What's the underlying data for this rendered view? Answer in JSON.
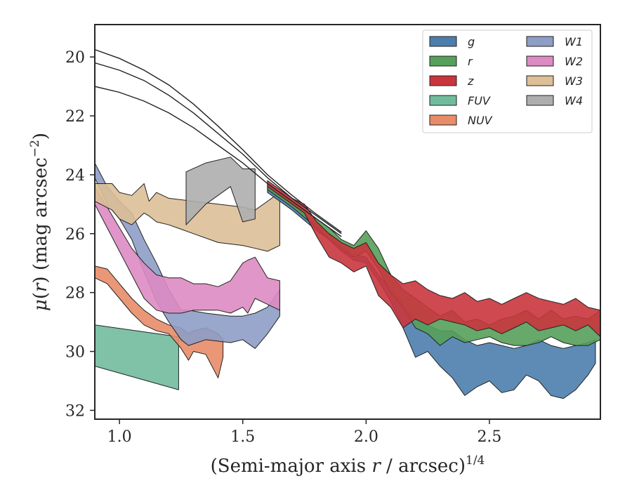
{
  "chart_data": {
    "type": "area",
    "xlabel": "(Semi-major axis r / arcsec)^1/4",
    "ylabel": "μ(r) (mag arcsec^−2)",
    "xlim": [
      0.9,
      2.95
    ],
    "ylim": [
      32.3,
      18.9
    ],
    "y_inverted": true,
    "xticks": [
      1.0,
      1.5,
      2.0,
      2.5
    ],
    "xtick_labels": [
      "1.0",
      "1.5",
      "2.0",
      "2.5"
    ],
    "yticks": [
      20,
      22,
      24,
      26,
      28,
      30,
      32
    ],
    "ytick_labels": [
      "20",
      "22",
      "24",
      "26",
      "28",
      "30",
      "32"
    ],
    "legend": {
      "position": "top-right",
      "columns": 2,
      "entries": [
        "g",
        "r",
        "z",
        "FUV",
        "NUV",
        "W1",
        "W2",
        "W3",
        "W4"
      ]
    },
    "colors": {
      "g": "#4c7ead",
      "r": "#55a05a",
      "z": "#c9353d",
      "FUV": "#71bb9d",
      "NUV": "#e88c69",
      "W1": "#8d9dc5",
      "W2": "#dd8bc2",
      "W3": "#dcbf97",
      "W4": "#aeaeae"
    },
    "model_curves": [
      {
        "x": [
          0.9,
          1.0,
          1.1,
          1.2,
          1.3,
          1.4,
          1.5,
          1.6,
          1.7,
          1.8,
          1.9
        ],
        "y": [
          21.0,
          21.2,
          21.5,
          21.9,
          22.4,
          23.0,
          23.6,
          24.3,
          24.9,
          25.5,
          26.1
        ]
      },
      {
        "x": [
          0.9,
          1.0,
          1.1,
          1.2,
          1.3,
          1.4,
          1.5,
          1.6,
          1.7,
          1.8,
          1.9
        ],
        "y": [
          20.2,
          20.45,
          20.8,
          21.3,
          21.9,
          22.6,
          23.3,
          24.1,
          24.8,
          25.4,
          26.0
        ]
      },
      {
        "x": [
          0.9,
          1.0,
          1.1,
          1.2,
          1.3,
          1.4,
          1.5,
          1.6,
          1.7,
          1.8,
          1.9
        ],
        "y": [
          19.75,
          20.05,
          20.45,
          20.95,
          21.6,
          22.35,
          23.15,
          24.0,
          24.7,
          25.35,
          25.95
        ]
      }
    ],
    "series": [
      {
        "name": "FUV",
        "x": [
          0.9,
          1.24
        ],
        "y_upper": [
          29.1,
          29.5
        ],
        "y_lower": [
          30.5,
          31.3
        ]
      },
      {
        "name": "NUV",
        "x": [
          0.9,
          0.95,
          1.0,
          1.05,
          1.1,
          1.15,
          1.2,
          1.25,
          1.28,
          1.3,
          1.35,
          1.4,
          1.42
        ],
        "y_upper": [
          27.1,
          27.2,
          27.7,
          28.2,
          28.6,
          28.9,
          29.1,
          29.2,
          29.4,
          29.3,
          29.2,
          29.4,
          29.6
        ],
        "y_lower": [
          27.5,
          27.7,
          28.2,
          28.7,
          29.1,
          29.3,
          29.4,
          29.9,
          30.3,
          30.0,
          30.1,
          30.9,
          30.2
        ]
      },
      {
        "name": "W1",
        "x": [
          0.9,
          0.95,
          1.0,
          1.05,
          1.1,
          1.15,
          1.2,
          1.25,
          1.28,
          1.35,
          1.45,
          1.5,
          1.55,
          1.6,
          1.65
        ],
        "y_upper": [
          23.6,
          24.4,
          24.9,
          25.3,
          26.2,
          27.0,
          27.9,
          28.6,
          28.6,
          28.7,
          28.8,
          28.8,
          28.7,
          28.5,
          27.9
        ],
        "y_lower": [
          24.1,
          25.0,
          25.5,
          26.2,
          27.3,
          28.3,
          29.0,
          29.6,
          29.8,
          29.6,
          29.7,
          29.6,
          29.9,
          29.4,
          28.8
        ]
      },
      {
        "name": "W2",
        "x": [
          0.9,
          0.95,
          1.0,
          1.05,
          1.1,
          1.15,
          1.2,
          1.25,
          1.3,
          1.35,
          1.4,
          1.45,
          1.5,
          1.52,
          1.55,
          1.6,
          1.65
        ],
        "y_upper": [
          24.4,
          25.1,
          25.8,
          26.5,
          27.0,
          27.4,
          27.5,
          27.5,
          27.7,
          27.7,
          27.8,
          27.6,
          27.0,
          26.9,
          26.8,
          27.5,
          27.6
        ],
        "y_lower": [
          25.0,
          25.8,
          26.6,
          27.4,
          28.2,
          28.6,
          28.7,
          28.7,
          28.6,
          28.6,
          28.6,
          28.7,
          28.5,
          28.7,
          28.2,
          28.4,
          28.6
        ]
      },
      {
        "name": "W3",
        "x": [
          0.9,
          0.97,
          1.0,
          1.05,
          1.1,
          1.12,
          1.15,
          1.2,
          1.3,
          1.4,
          1.5,
          1.55,
          1.6,
          1.65
        ],
        "y_upper": [
          24.3,
          24.3,
          24.6,
          24.7,
          24.3,
          24.9,
          24.6,
          24.8,
          24.9,
          25.0,
          25.1,
          25.2,
          24.9,
          24.6
        ],
        "y_lower": [
          24.9,
          25.2,
          25.5,
          25.7,
          25.3,
          25.4,
          25.6,
          25.7,
          26.0,
          26.3,
          26.4,
          26.5,
          26.6,
          26.4
        ]
      },
      {
        "name": "W4",
        "x": [
          1.27,
          1.35,
          1.45,
          1.5,
          1.55
        ],
        "y_upper": [
          23.9,
          23.6,
          23.4,
          23.8,
          23.8
        ],
        "y_lower": [
          25.7,
          25.0,
          24.4,
          25.6,
          25.5
        ]
      },
      {
        "name": "g",
        "x": [
          1.6,
          1.7,
          1.8,
          1.85,
          1.9,
          1.95,
          2.0,
          2.05,
          2.1,
          2.15,
          2.2,
          2.25,
          2.3,
          2.35,
          2.4,
          2.45,
          2.5,
          2.55,
          2.6,
          2.65,
          2.7,
          2.75,
          2.8,
          2.85,
          2.9,
          2.93
        ],
        "y_upper": [
          24.4,
          25.0,
          25.7,
          26.0,
          26.4,
          26.7,
          26.8,
          27.4,
          27.9,
          28.4,
          28.9,
          29.1,
          29.3,
          29.3,
          29.6,
          29.8,
          29.7,
          29.8,
          29.9,
          29.8,
          29.6,
          29.8,
          29.9,
          29.8,
          29.7,
          29.6
        ],
        "y_lower": [
          24.6,
          25.2,
          25.9,
          26.2,
          26.6,
          26.9,
          27.0,
          27.6,
          28.3,
          29.2,
          30.2,
          30.0,
          30.5,
          30.9,
          31.5,
          31.2,
          31.0,
          31.4,
          31.3,
          30.8,
          31.0,
          31.5,
          31.6,
          31.3,
          30.8,
          30.4
        ]
      },
      {
        "name": "r",
        "x": [
          1.6,
          1.7,
          1.8,
          1.85,
          1.9,
          1.95,
          2.0,
          2.05,
          2.1,
          2.15,
          2.2,
          2.25,
          2.3,
          2.35,
          2.4,
          2.45,
          2.5,
          2.55,
          2.6,
          2.65,
          2.7,
          2.75,
          2.8,
          2.85,
          2.9,
          2.95
        ],
        "y_upper": [
          24.3,
          24.9,
          25.5,
          25.8,
          26.2,
          26.4,
          25.9,
          26.5,
          27.4,
          27.9,
          28.2,
          28.5,
          28.8,
          28.6,
          29.0,
          28.9,
          29.1,
          28.9,
          28.8,
          28.6,
          28.9,
          28.6,
          28.9,
          28.8,
          28.9,
          28.6
        ],
        "y_lower": [
          24.5,
          25.1,
          25.8,
          26.2,
          26.5,
          26.8,
          26.6,
          27.2,
          28.0,
          28.5,
          29.2,
          29.4,
          29.8,
          29.5,
          29.7,
          29.6,
          29.5,
          29.7,
          29.8,
          29.8,
          29.7,
          29.5,
          29.7,
          29.8,
          29.8,
          29.6
        ]
      },
      {
        "name": "z",
        "x": [
          1.6,
          1.7,
          1.75,
          1.8,
          1.85,
          1.9,
          1.95,
          2.0,
          2.05,
          2.1,
          2.15,
          2.2,
          2.25,
          2.3,
          2.35,
          2.4,
          2.45,
          2.5,
          2.55,
          2.6,
          2.65,
          2.7,
          2.75,
          2.8,
          2.85,
          2.9,
          2.95
        ],
        "y_upper": [
          24.2,
          24.8,
          25.0,
          25.6,
          26.0,
          26.3,
          26.5,
          26.3,
          27.0,
          27.4,
          27.7,
          27.6,
          27.9,
          28.1,
          28.2,
          28.0,
          28.3,
          28.2,
          28.4,
          28.2,
          28.0,
          28.2,
          28.3,
          28.4,
          28.2,
          28.5,
          28.6
        ],
        "y_lower": [
          24.4,
          25.0,
          25.3,
          26.1,
          26.8,
          27.0,
          27.3,
          27.1,
          28.1,
          28.5,
          29.2,
          28.9,
          29.1,
          28.9,
          29.0,
          29.1,
          29.3,
          29.2,
          29.4,
          29.2,
          29.0,
          29.3,
          29.2,
          29.1,
          29.3,
          29.1,
          29.5
        ]
      }
    ]
  }
}
